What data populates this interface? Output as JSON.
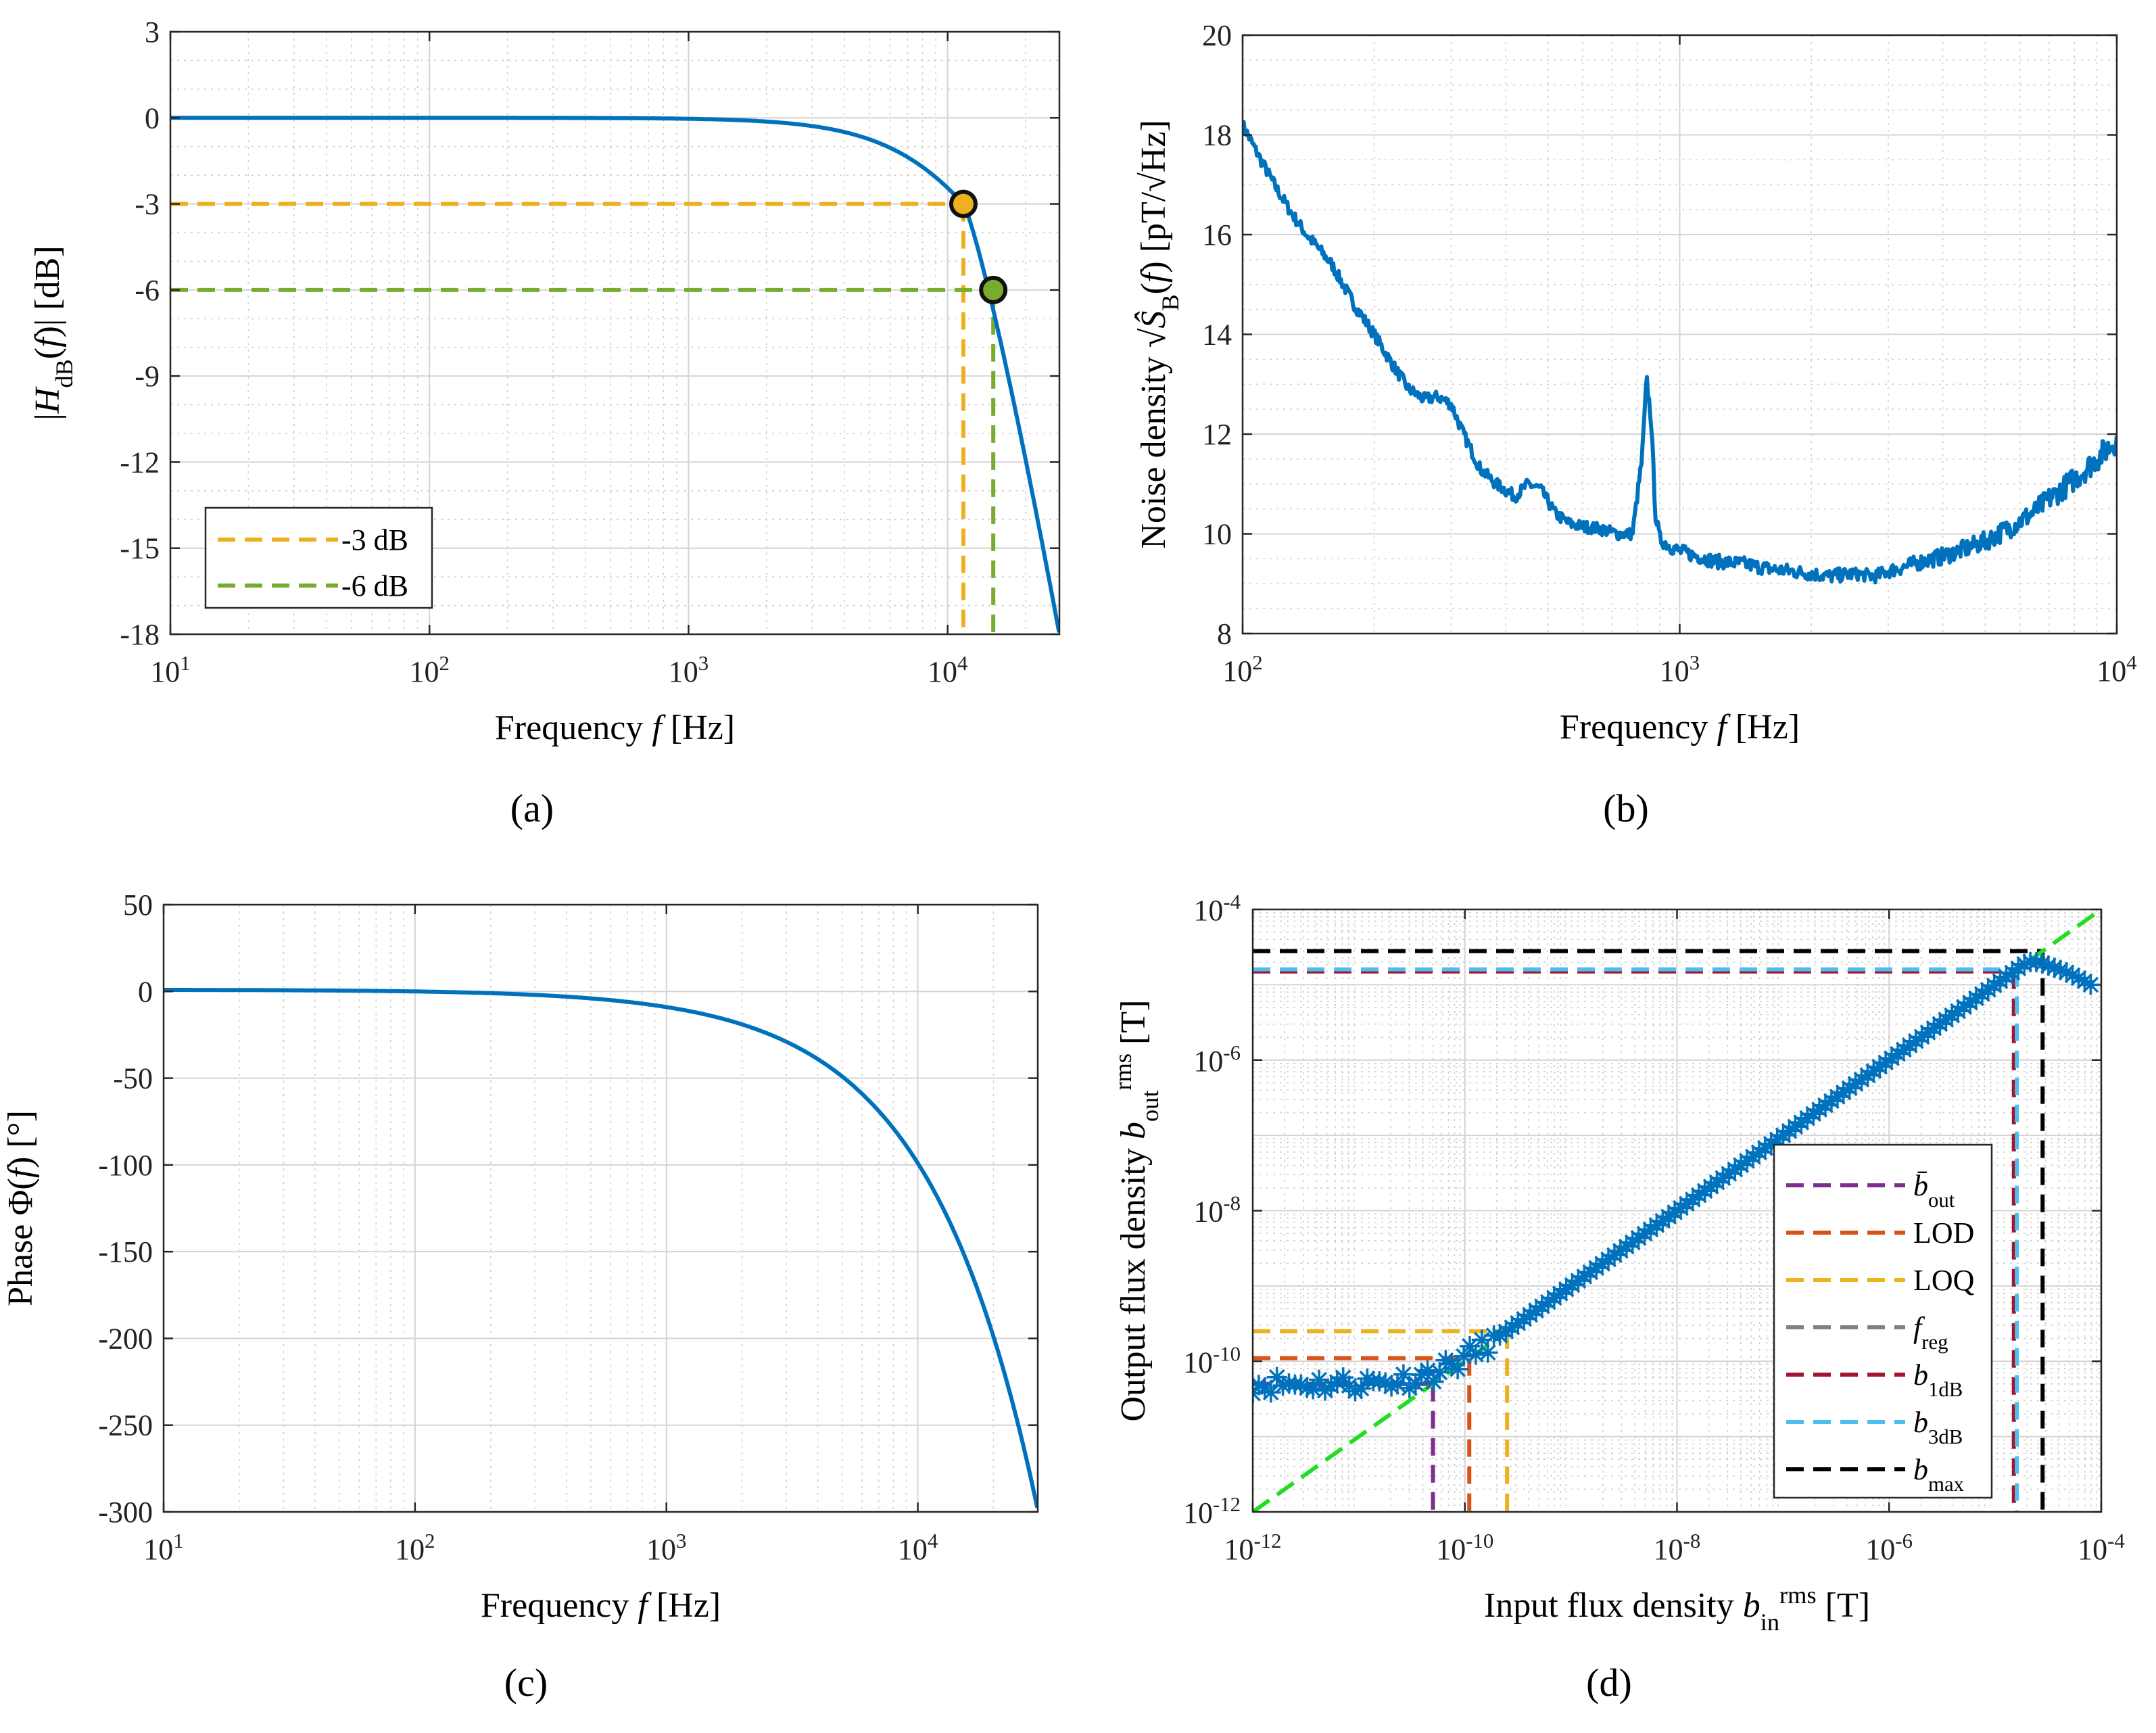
{
  "chart_data": [
    {
      "id": "a",
      "type": "line",
      "caption": "(a)",
      "xlabel": "Frequency f [Hz]",
      "ylabel": "|H_dB(f)| [dB]",
      "xscale": "log",
      "xlim": [
        10,
        27000
      ],
      "ylim": [
        -18,
        3
      ],
      "xticks": [
        10,
        100,
        1000,
        10000
      ],
      "xtick_labels": [
        "10^1",
        "10^2",
        "10^3",
        "10^4"
      ],
      "yticks": [
        3,
        0,
        -3,
        -6,
        -9,
        -12,
        -15,
        -18
      ],
      "ytick_labels": [
        "3",
        "0",
        "-3",
        "-6",
        "-9",
        "-12",
        "-15",
        "-18"
      ],
      "grid": true,
      "legend_position": "bottom-left",
      "legend": [
        {
          "label": "-3 dB",
          "color": "#EDB120"
        },
        {
          "label": "-6 dB",
          "color": "#77AC30"
        }
      ],
      "series": [
        {
          "name": "",
          "color": "#0072BD",
          "model": "first-order low-pass",
          "x": [
            10,
            100,
            1000,
            3000,
            6000,
            9000,
            11500,
            15000,
            20000,
            27000
          ],
          "y": [
            0,
            0,
            -0.04,
            -0.3,
            -1.1,
            -2.1,
            -3.0,
            -6.0,
            -10.5,
            -18.0
          ]
        }
      ],
      "markers": [
        {
          "x": 11500,
          "y": -3,
          "color": "#EDB120"
        },
        {
          "x": 15000,
          "y": -6,
          "color": "#77AC30"
        }
      ]
    },
    {
      "id": "b",
      "type": "line",
      "caption": "(b)",
      "xlabel": "Frequency f [Hz]",
      "ylabel": "Noise density √Ŝ_B(f) [pT/√Hz]",
      "xscale": "log",
      "xlim": [
        100,
        10000
      ],
      "ylim": [
        8,
        20
      ],
      "xticks": [
        100,
        1000,
        10000
      ],
      "xtick_labels": [
        "10^2",
        "10^3",
        "10^4"
      ],
      "yticks": [
        8,
        10,
        12,
        14,
        16,
        18,
        20
      ],
      "ytick_labels": [
        "8",
        "10",
        "12",
        "14",
        "16",
        "18",
        "20"
      ],
      "grid": true,
      "series": [
        {
          "name": "",
          "color": "#0072BD",
          "x": [
            100,
            110,
            120,
            130,
            140,
            150,
            160,
            180,
            200,
            220,
            240,
            260,
            280,
            300,
            320,
            350,
            380,
            420,
            450,
            480,
            520,
            560,
            600,
            660,
            720,
            780,
            820,
            840,
            860,
            880,
            900,
            950,
            1000,
            1100,
            1200,
            1400,
            1600,
            1800,
            2000,
            2200,
            2500,
            2800,
            3000,
            3300,
            3600,
            4000,
            4500,
            5000,
            5500,
            6000,
            6500,
            7000,
            7500,
            8000,
            8500,
            9000,
            9500,
            10000
          ],
          "y": [
            18.2,
            17.5,
            16.9,
            16.4,
            16.0,
            15.7,
            15.4,
            14.6,
            14.0,
            13.4,
            12.9,
            12.7,
            12.75,
            12.6,
            12.0,
            11.3,
            11.0,
            10.75,
            11.0,
            10.9,
            10.4,
            10.2,
            10.15,
            10.1,
            10.0,
            10.0,
            11.5,
            13.1,
            12.3,
            10.4,
            9.9,
            9.75,
            9.65,
            9.55,
            9.45,
            9.4,
            9.3,
            9.25,
            9.2,
            9.15,
            9.2,
            9.15,
            9.25,
            9.35,
            9.45,
            9.55,
            9.7,
            9.85,
            10.05,
            10.25,
            10.45,
            10.7,
            10.9,
            11.1,
            11.3,
            11.5,
            11.7,
            11.9
          ]
        }
      ]
    },
    {
      "id": "c",
      "type": "line",
      "caption": "(c)",
      "xlabel": "Frequency f [Hz]",
      "ylabel": "Phase Φ(f) [°]",
      "xscale": "log",
      "xlim": [
        10,
        30000
      ],
      "ylim": [
        -300,
        50
      ],
      "xticks": [
        10,
        100,
        1000,
        10000
      ],
      "xtick_labels": [
        "10^1",
        "10^2",
        "10^3",
        "10^4"
      ],
      "yticks": [
        50,
        0,
        -50,
        -100,
        -150,
        -200,
        -250,
        -300
      ],
      "ytick_labels": [
        "50",
        "0",
        "-50",
        "-100",
        "-150",
        "-200",
        "-250",
        "-300"
      ],
      "grid": true,
      "series": [
        {
          "name": "",
          "color": "#0072BD",
          "model": "linear phase",
          "x": [
            10,
            100,
            1000,
            3000,
            10000,
            20000,
            30000
          ],
          "y": [
            1,
            -1,
            -10,
            -30,
            -100,
            -200,
            -300
          ]
        }
      ]
    },
    {
      "id": "d",
      "type": "scatter",
      "caption": "(d)",
      "xlabel": "Input flux density b_in^rms [T]",
      "ylabel": "Output flux density b_out^rms [T]",
      "xscale": "log",
      "yscale": "log",
      "xlim": [
        1e-12,
        0.0001
      ],
      "ylim": [
        1e-12,
        0.0001
      ],
      "xticks": [
        1e-12,
        1e-10,
        1e-08,
        1e-06,
        0.0001
      ],
      "xtick_labels": [
        "10^-12",
        "10^-10",
        "10^-8",
        "10^-6",
        "10^-4"
      ],
      "yticks": [
        1e-12,
        1e-10,
        1e-08,
        1e-06,
        0.0001
      ],
      "ytick_labels": [
        "10^-12",
        "10^-10",
        "10^-8",
        "10^-6",
        "10^-4"
      ],
      "grid": true,
      "legend_position": "bottom-right",
      "legend": [
        {
          "label": "b̄_out",
          "color": "#7E2F8E"
        },
        {
          "label": "LOD",
          "color": "#D95319"
        },
        {
          "label": "LOQ",
          "color": "#EDB120"
        },
        {
          "label": "f_reg",
          "color": "#808080"
        },
        {
          "label": "b_1dB",
          "color": "#A2142F"
        },
        {
          "label": "b_3dB",
          "color": "#4DBEEE"
        },
        {
          "label": "b_max",
          "color": "#000000"
        }
      ],
      "reference_lines": {
        "noise_mean": 5e-11,
        "lod": 1.1e-10,
        "loq": 2.5e-10,
        "b_1dB": 1.5e-05,
        "b_3dB": 1.6e-05,
        "b_max": 2.8e-05,
        "regression": {
          "color": "#22DD22",
          "slope": 1,
          "intercept_log10": 0
        }
      },
      "series": [
        {
          "name": "",
          "color": "#0072BD",
          "marker": "*",
          "x_log10_range": [
            -12,
            -4.1
          ],
          "n_points": 140,
          "noise_floor": 5e-11,
          "saturation": 2e-05
        }
      ]
    }
  ]
}
